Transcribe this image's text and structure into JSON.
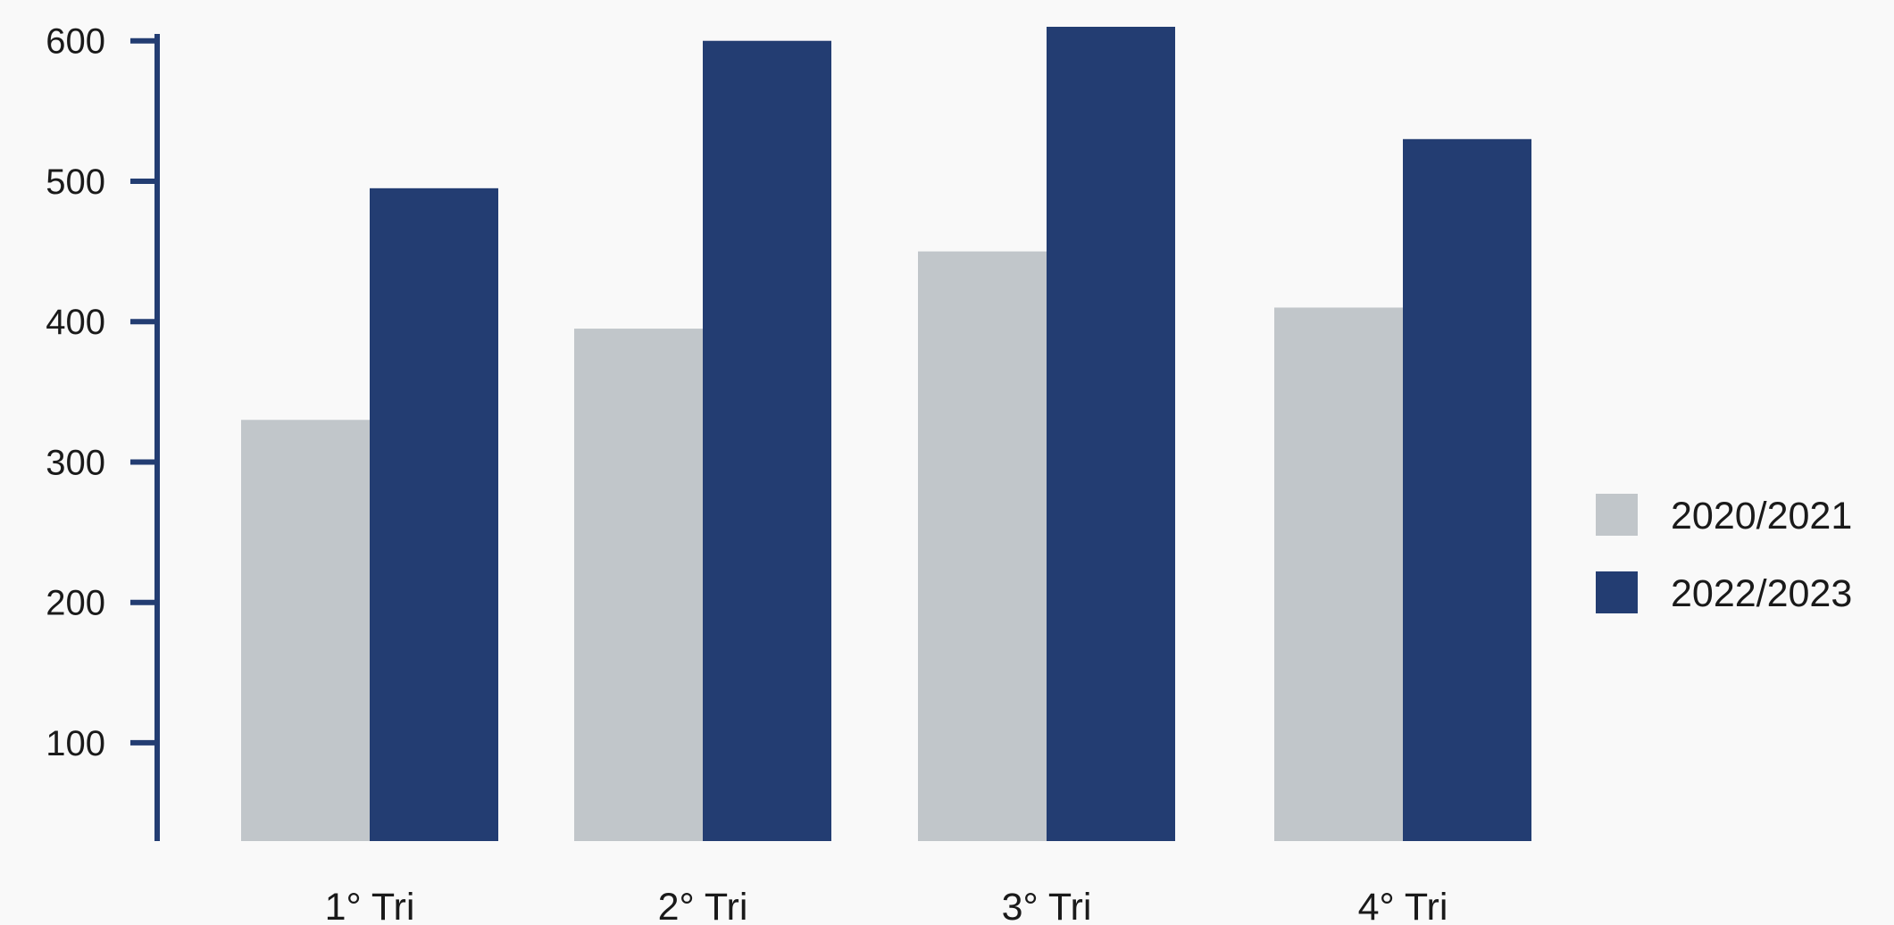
{
  "chart_data": {
    "type": "bar",
    "categories": [
      "1° Tri",
      "2° Tri",
      "3° Tri",
      "4° Tri"
    ],
    "series": [
      {
        "name": "2020/2021",
        "color": "#c1c6ca",
        "values": [
          330,
          395,
          450,
          410
        ]
      },
      {
        "name": "2022/2023",
        "color": "#233d72",
        "values": [
          495,
          600,
          610,
          530
        ]
      }
    ],
    "yticks": [
      100,
      200,
      300,
      400,
      500,
      600
    ],
    "ylim": [
      30,
      610
    ],
    "title": "",
    "xlabel": "",
    "ylabel": "",
    "axis_color": "#233d72",
    "grid": false,
    "legend_position": "right"
  }
}
